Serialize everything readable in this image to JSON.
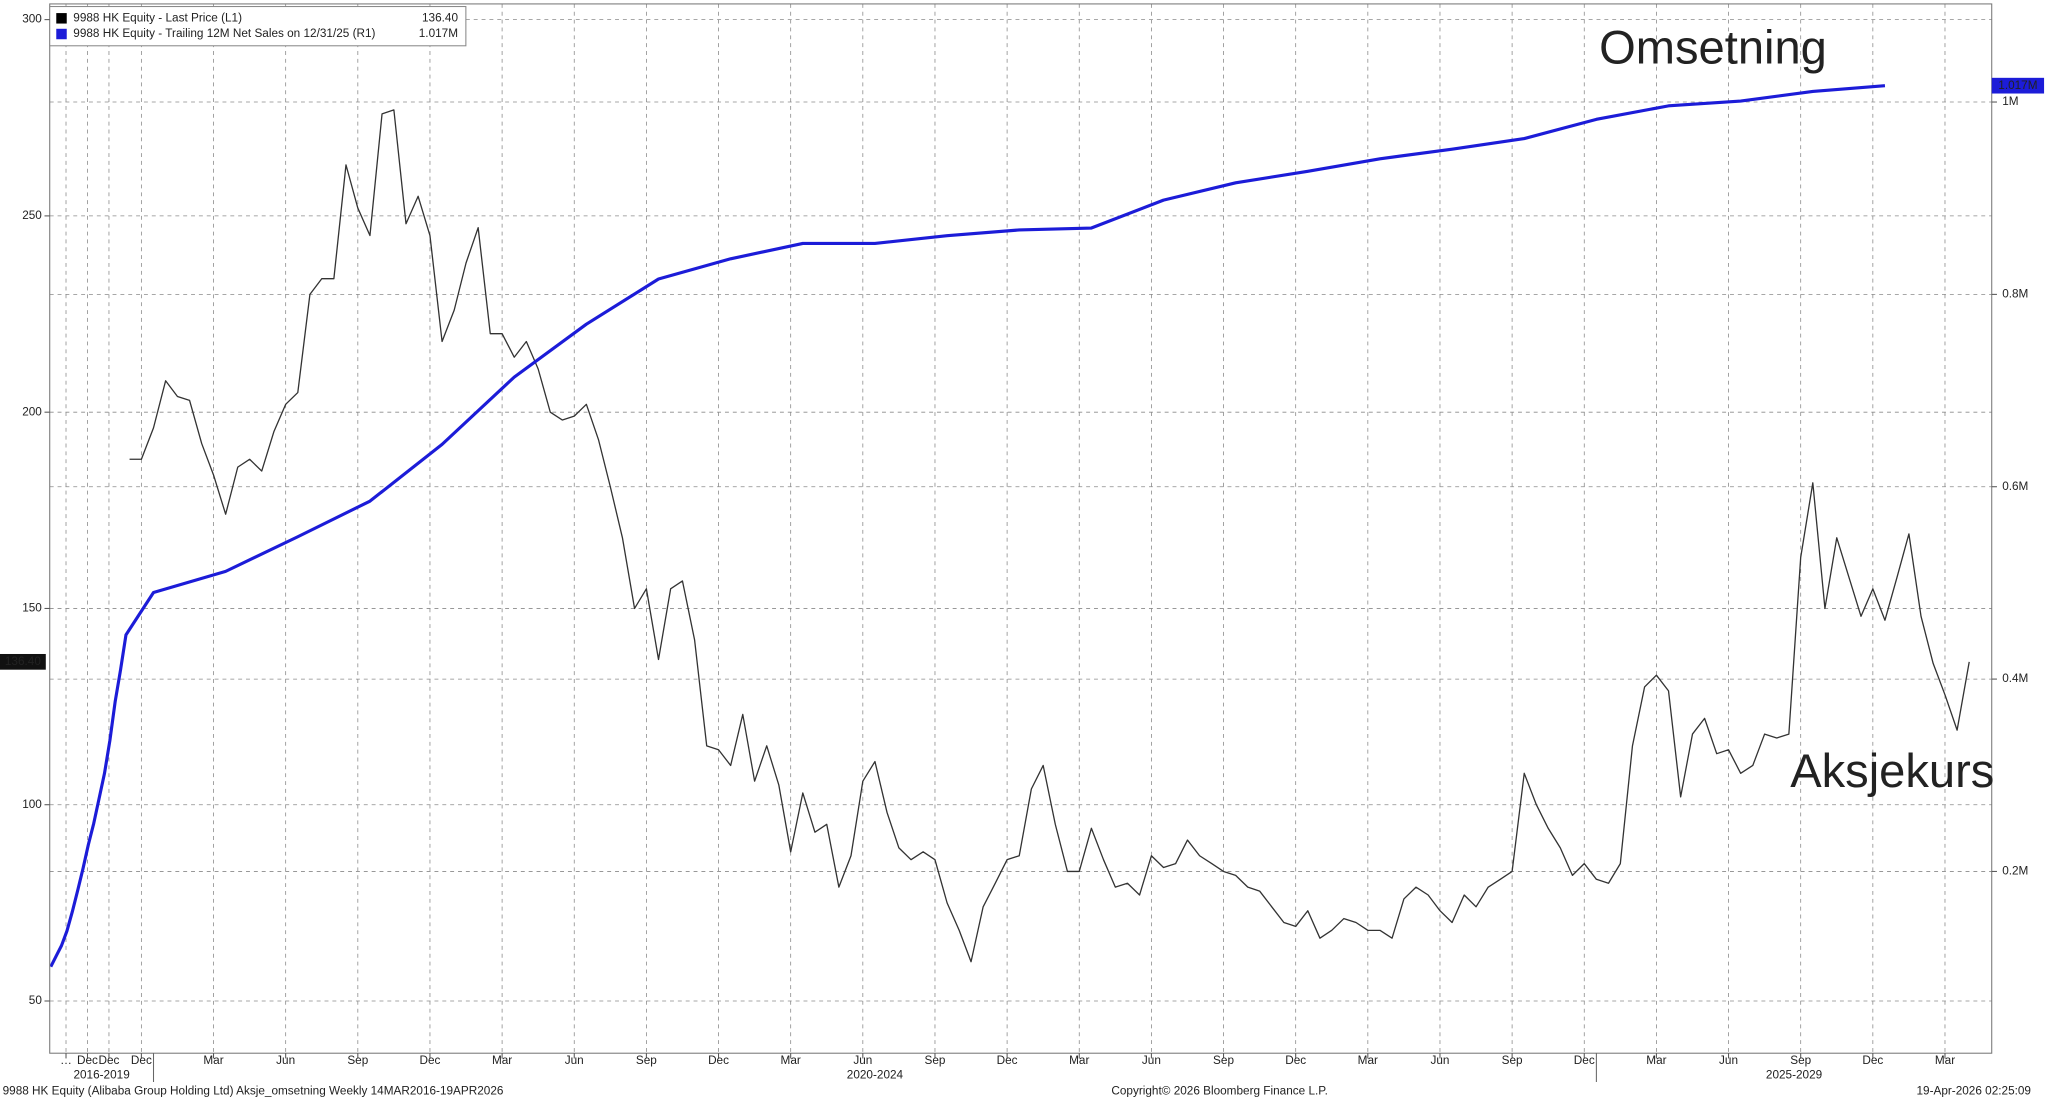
{
  "chart_data": {
    "type": "line",
    "legend_title": null,
    "series": [
      {
        "name": "9988 HK Equity - Last Price (L1)",
        "last_label": "136.40",
        "color": "#333333",
        "axis": "y",
        "x": [
          2019.917,
          2019.958,
          2020.0,
          2020.042,
          2020.083,
          2020.125,
          2020.167,
          2020.208,
          2020.25,
          2020.292,
          2020.333,
          2020.375,
          2020.417,
          2020.458,
          2020.5,
          2020.542,
          2020.583,
          2020.625,
          2020.667,
          2020.708,
          2020.75,
          2020.792,
          2020.833,
          2020.875,
          2020.917,
          2020.958,
          2021.0,
          2021.042,
          2021.083,
          2021.125,
          2021.167,
          2021.208,
          2021.25,
          2021.292,
          2021.333,
          2021.375,
          2021.417,
          2021.458,
          2021.5,
          2021.542,
          2021.583,
          2021.625,
          2021.667,
          2021.708,
          2021.75,
          2021.792,
          2021.833,
          2021.875,
          2021.917,
          2021.958,
          2022.0,
          2022.042,
          2022.083,
          2022.125,
          2022.167,
          2022.208,
          2022.25,
          2022.292,
          2022.333,
          2022.375,
          2022.417,
          2022.458,
          2022.5,
          2022.542,
          2022.583,
          2022.625,
          2022.667,
          2022.708,
          2022.75,
          2022.792,
          2022.833,
          2022.875,
          2022.917,
          2022.958,
          2023.0,
          2023.042,
          2023.083,
          2023.125,
          2023.167,
          2023.208,
          2023.25,
          2023.292,
          2023.333,
          2023.375,
          2023.417,
          2023.458,
          2023.5,
          2023.542,
          2023.583,
          2023.625,
          2023.667,
          2023.708,
          2023.75,
          2023.792,
          2023.833,
          2023.875,
          2023.917,
          2023.958,
          2024.0,
          2024.042,
          2024.083,
          2024.125,
          2024.167,
          2024.208,
          2024.25,
          2024.292,
          2024.333,
          2024.375,
          2024.417,
          2024.458,
          2024.5,
          2024.542,
          2024.583,
          2024.625,
          2024.667,
          2024.708,
          2024.75,
          2024.792,
          2024.833,
          2024.875,
          2024.917,
          2024.958,
          2025.0,
          2025.042,
          2025.083,
          2025.125,
          2025.167,
          2025.208,
          2025.25,
          2025.292,
          2025.333,
          2025.375,
          2025.417,
          2025.458,
          2025.5,
          2025.542,
          2025.583,
          2025.625,
          2025.667,
          2025.708,
          2025.75,
          2025.792,
          2025.833,
          2025.875,
          2025.917,
          2025.958,
          2026.0,
          2026.042,
          2026.083,
          2026.125,
          2026.167,
          2026.208,
          2026.25,
          2026.292
        ],
        "values": [
          188,
          188,
          196,
          208,
          204,
          203,
          192,
          184,
          174,
          186,
          188,
          185,
          195,
          202,
          205,
          230,
          234,
          234,
          263,
          252,
          245,
          276,
          277,
          248,
          255,
          245,
          218,
          226,
          238,
          247,
          220,
          220,
          214,
          218,
          211,
          200,
          198,
          199,
          202,
          193,
          181,
          168,
          150,
          155,
          137,
          155,
          157,
          142,
          115,
          114,
          110,
          123,
          106,
          115,
          105,
          88,
          103,
          93,
          95,
          79,
          87,
          106,
          111,
          98,
          89,
          86,
          88,
          86,
          75,
          68,
          60,
          74,
          80,
          86,
          87,
          104,
          110,
          95,
          83,
          83,
          94,
          86,
          79,
          80,
          77,
          87,
          84,
          85,
          91,
          87,
          85,
          83,
          82,
          79,
          78,
          74,
          70,
          69,
          73,
          66,
          68,
          71,
          70,
          68,
          68,
          66,
          76,
          79,
          77,
          73,
          70,
          77,
          74,
          79,
          81,
          83,
          108,
          100,
          94,
          89,
          82,
          85,
          81,
          80,
          85,
          115,
          130,
          133,
          129,
          102,
          118,
          122,
          113,
          114,
          108,
          110,
          118,
          117,
          118,
          163,
          182,
          150,
          168,
          158,
          148,
          155,
          147,
          158,
          169,
          148,
          136,
          128,
          119,
          136.4
        ]
      },
      {
        "name": "9988 HK Equity - Trailing 12M Net Sales on 12/31/25 (R1)",
        "last_label": "1.017M",
        "color": "#1c1cd8",
        "axis": "y2",
        "x": [
          2016.25,
          2016.5,
          2016.75,
          2017.0,
          2017.25,
          2017.5,
          2017.75,
          2018.0,
          2018.25,
          2018.5,
          2018.75,
          2019.0,
          2019.25,
          2019.5,
          2019.75,
          2020.0,
          2020.25,
          2020.5,
          2020.75,
          2021.0,
          2021.25,
          2021.5,
          2021.75,
          2022.0,
          2022.25,
          2022.5,
          2022.75,
          2023.0,
          2023.25,
          2023.5,
          2023.75,
          2024.0,
          2024.25,
          2024.5,
          2024.75,
          2025.0,
          2025.25,
          2025.5,
          2025.75,
          2026.0
        ],
        "values": [
          0.101,
          0.112,
          0.123,
          0.138,
          0.158,
          0.18,
          0.203,
          0.228,
          0.25,
          0.276,
          0.302,
          0.336,
          0.377,
          0.41,
          0.446,
          0.49,
          0.512,
          0.548,
          0.585,
          0.644,
          0.714,
          0.769,
          0.816,
          0.837,
          0.853,
          0.853,
          0.861,
          0.867,
          0.869,
          0.898,
          0.916,
          0.928,
          0.941,
          0.951,
          0.962,
          0.982,
          0.996,
          1.001,
          1.011,
          1.017
        ]
      }
    ],
    "xlim": [
      2016.2,
      2026.37
    ],
    "xticks": [
      {
        "value": 2016.958,
        "label": "…"
      },
      {
        "value": 2017.958,
        "label": "Dec"
      },
      {
        "value": 2018.958,
        "label": "Dec"
      },
      {
        "value": 2019.958,
        "label": "Dec"
      },
      {
        "value": 2020.208,
        "label": "Mar"
      },
      {
        "value": 2020.458,
        "label": "Jun"
      },
      {
        "value": 2020.708,
        "label": "Sep"
      },
      {
        "value": 2020.958,
        "label": "Dec"
      },
      {
        "value": 2021.208,
        "label": "Mar"
      },
      {
        "value": 2021.458,
        "label": "Jun"
      },
      {
        "value": 2021.708,
        "label": "Sep"
      },
      {
        "value": 2021.958,
        "label": "Dec"
      },
      {
        "value": 2022.208,
        "label": "Mar"
      },
      {
        "value": 2022.458,
        "label": "Jun"
      },
      {
        "value": 2022.708,
        "label": "Sep"
      },
      {
        "value": 2022.958,
        "label": "Dec"
      },
      {
        "value": 2023.208,
        "label": "Mar"
      },
      {
        "value": 2023.458,
        "label": "Jun"
      },
      {
        "value": 2023.708,
        "label": "Sep"
      },
      {
        "value": 2023.958,
        "label": "Dec"
      },
      {
        "value": 2024.208,
        "label": "Mar"
      },
      {
        "value": 2024.458,
        "label": "Jun"
      },
      {
        "value": 2024.708,
        "label": "Sep"
      },
      {
        "value": 2024.958,
        "label": "Dec"
      },
      {
        "value": 2025.208,
        "label": "Mar"
      },
      {
        "value": 2025.458,
        "label": "Jun"
      },
      {
        "value": 2025.708,
        "label": "Sep"
      },
      {
        "value": 2025.958,
        "label": "Dec"
      },
      {
        "value": 2026.208,
        "label": "Mar"
      }
    ],
    "x_groups": [
      {
        "label": "2016-2019",
        "start": 2016,
        "end": 2020
      },
      {
        "label": "2020-2024",
        "start": 2020,
        "end": 2025
      },
      {
        "label": "2025-2029",
        "start": 2025,
        "end": 2030
      }
    ],
    "ylim": [
      36.7,
      304
    ],
    "yticks": [
      50,
      100,
      150,
      200,
      250,
      300
    ],
    "y2lim": [
      0.011,
      1.102
    ],
    "y2ticks": [
      {
        "value": 0.2,
        "label": "0.2M"
      },
      {
        "value": 0.4,
        "label": "0.4M"
      },
      {
        "value": 0.6,
        "label": "0.6M"
      },
      {
        "value": 0.8,
        "label": "0.8M"
      },
      {
        "value": 1,
        "label": "1M"
      }
    ],
    "grid": true,
    "legend": "upper left",
    "annotations": [
      {
        "text": "Omsetning",
        "color": "#1a1aff"
      },
      {
        "text": "Aksjekurs",
        "color": "#000000"
      }
    ],
    "footer": {
      "left": "9988 HK Equity (Alibaba Group Holding Ltd) Aksje_omsetning Weekly 14MAR2016-19APR2026",
      "center": "Copyright© 2026 Bloomberg Finance L.P.",
      "right": "19-Apr-2026 02:25:09"
    }
  }
}
